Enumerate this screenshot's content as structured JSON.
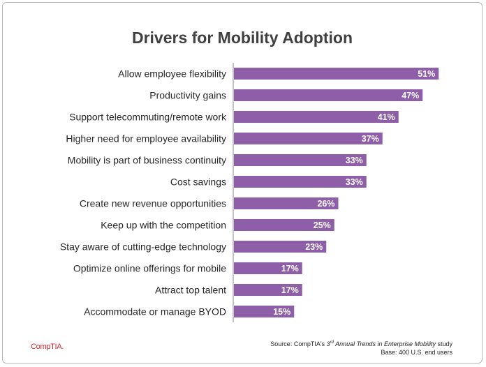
{
  "chart_data": {
    "type": "bar",
    "orientation": "horizontal",
    "title": "Drivers for Mobility Adoption",
    "categories": [
      "Allow employee flexibility",
      "Productivity gains",
      "Support telecommuting/remote work",
      "Higher need for employee availability",
      "Mobility is part of business continuity",
      "Cost savings",
      "Create new revenue opportunities",
      "Keep up with the competition",
      "Stay aware of cutting-edge technology",
      "Optimize online offerings for mobile",
      "Attract top talent",
      "Accommodate or manage BYOD"
    ],
    "values": [
      51,
      47,
      41,
      37,
      33,
      33,
      26,
      25,
      23,
      17,
      17,
      15
    ],
    "value_suffix": "%",
    "xlim": [
      0,
      100
    ],
    "xlabel": "",
    "ylabel": "",
    "grid": false,
    "bar_color": "#8e5ea8"
  },
  "footer": {
    "logo_text": "CompTIA.",
    "source_prefix": "Source: CompTIA's ",
    "source_ordinal": "3",
    "source_ordinal_suffix": "rd",
    "source_study": " Annual Trends in Enterprise Mobility",
    "source_suffix": " study",
    "base_note": "Base: 400 U.S. end users"
  }
}
